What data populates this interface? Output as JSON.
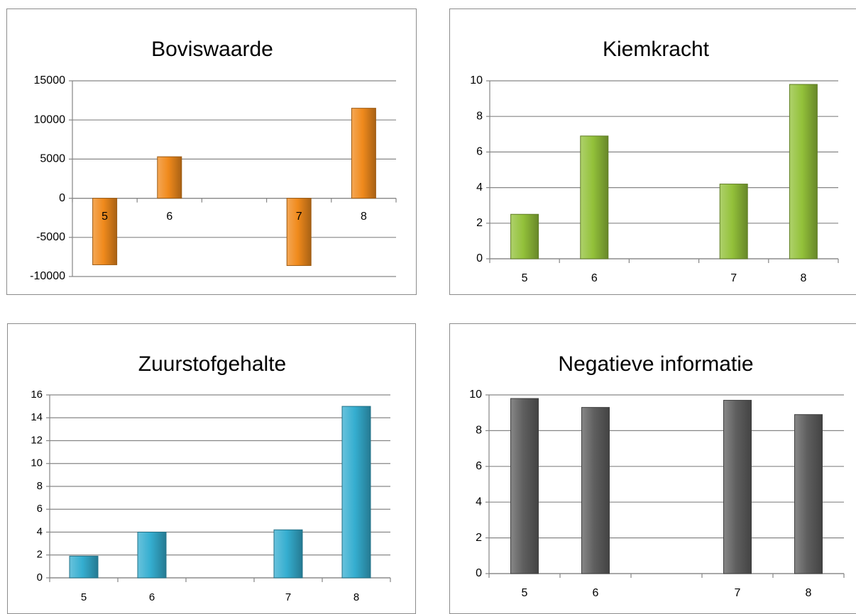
{
  "chart_data": [
    {
      "type": "bar",
      "title": "Boviswaarde",
      "categories": [
        "5",
        "6",
        "",
        "7",
        "8"
      ],
      "values": [
        -8500,
        5300,
        null,
        -8600,
        11500
      ],
      "ylim": [
        -10000,
        15000
      ],
      "yticks": [
        -10000,
        -5000,
        0,
        5000,
        10000,
        15000
      ],
      "grid": true,
      "color": "#f08a1c"
    },
    {
      "type": "bar",
      "title": "Kiemkracht",
      "categories": [
        "5",
        "6",
        "",
        "7",
        "8"
      ],
      "values": [
        2.5,
        6.9,
        null,
        4.2,
        9.8
      ],
      "ylim": [
        0,
        10
      ],
      "yticks": [
        0,
        2,
        4,
        6,
        8,
        10
      ],
      "grid": true,
      "color": "#93c13a"
    },
    {
      "type": "bar",
      "title": "Zuurstofgehalte",
      "categories": [
        "5",
        "6",
        "",
        "7",
        "8"
      ],
      "values": [
        1.9,
        4.0,
        null,
        4.2,
        15.0
      ],
      "ylim": [
        0,
        16
      ],
      "yticks": [
        0,
        2,
        4,
        6,
        8,
        10,
        12,
        14,
        16
      ],
      "grid": true,
      "color": "#35aed0"
    },
    {
      "type": "bar",
      "title": "Negatieve informatie",
      "categories": [
        "5",
        "6",
        "",
        "7",
        "8"
      ],
      "values": [
        9.8,
        9.3,
        null,
        9.7,
        8.9
      ],
      "ylim": [
        0,
        10
      ],
      "yticks": [
        0,
        2,
        4,
        6,
        8,
        10
      ],
      "grid": true,
      "color": "#5f5f5f"
    }
  ]
}
